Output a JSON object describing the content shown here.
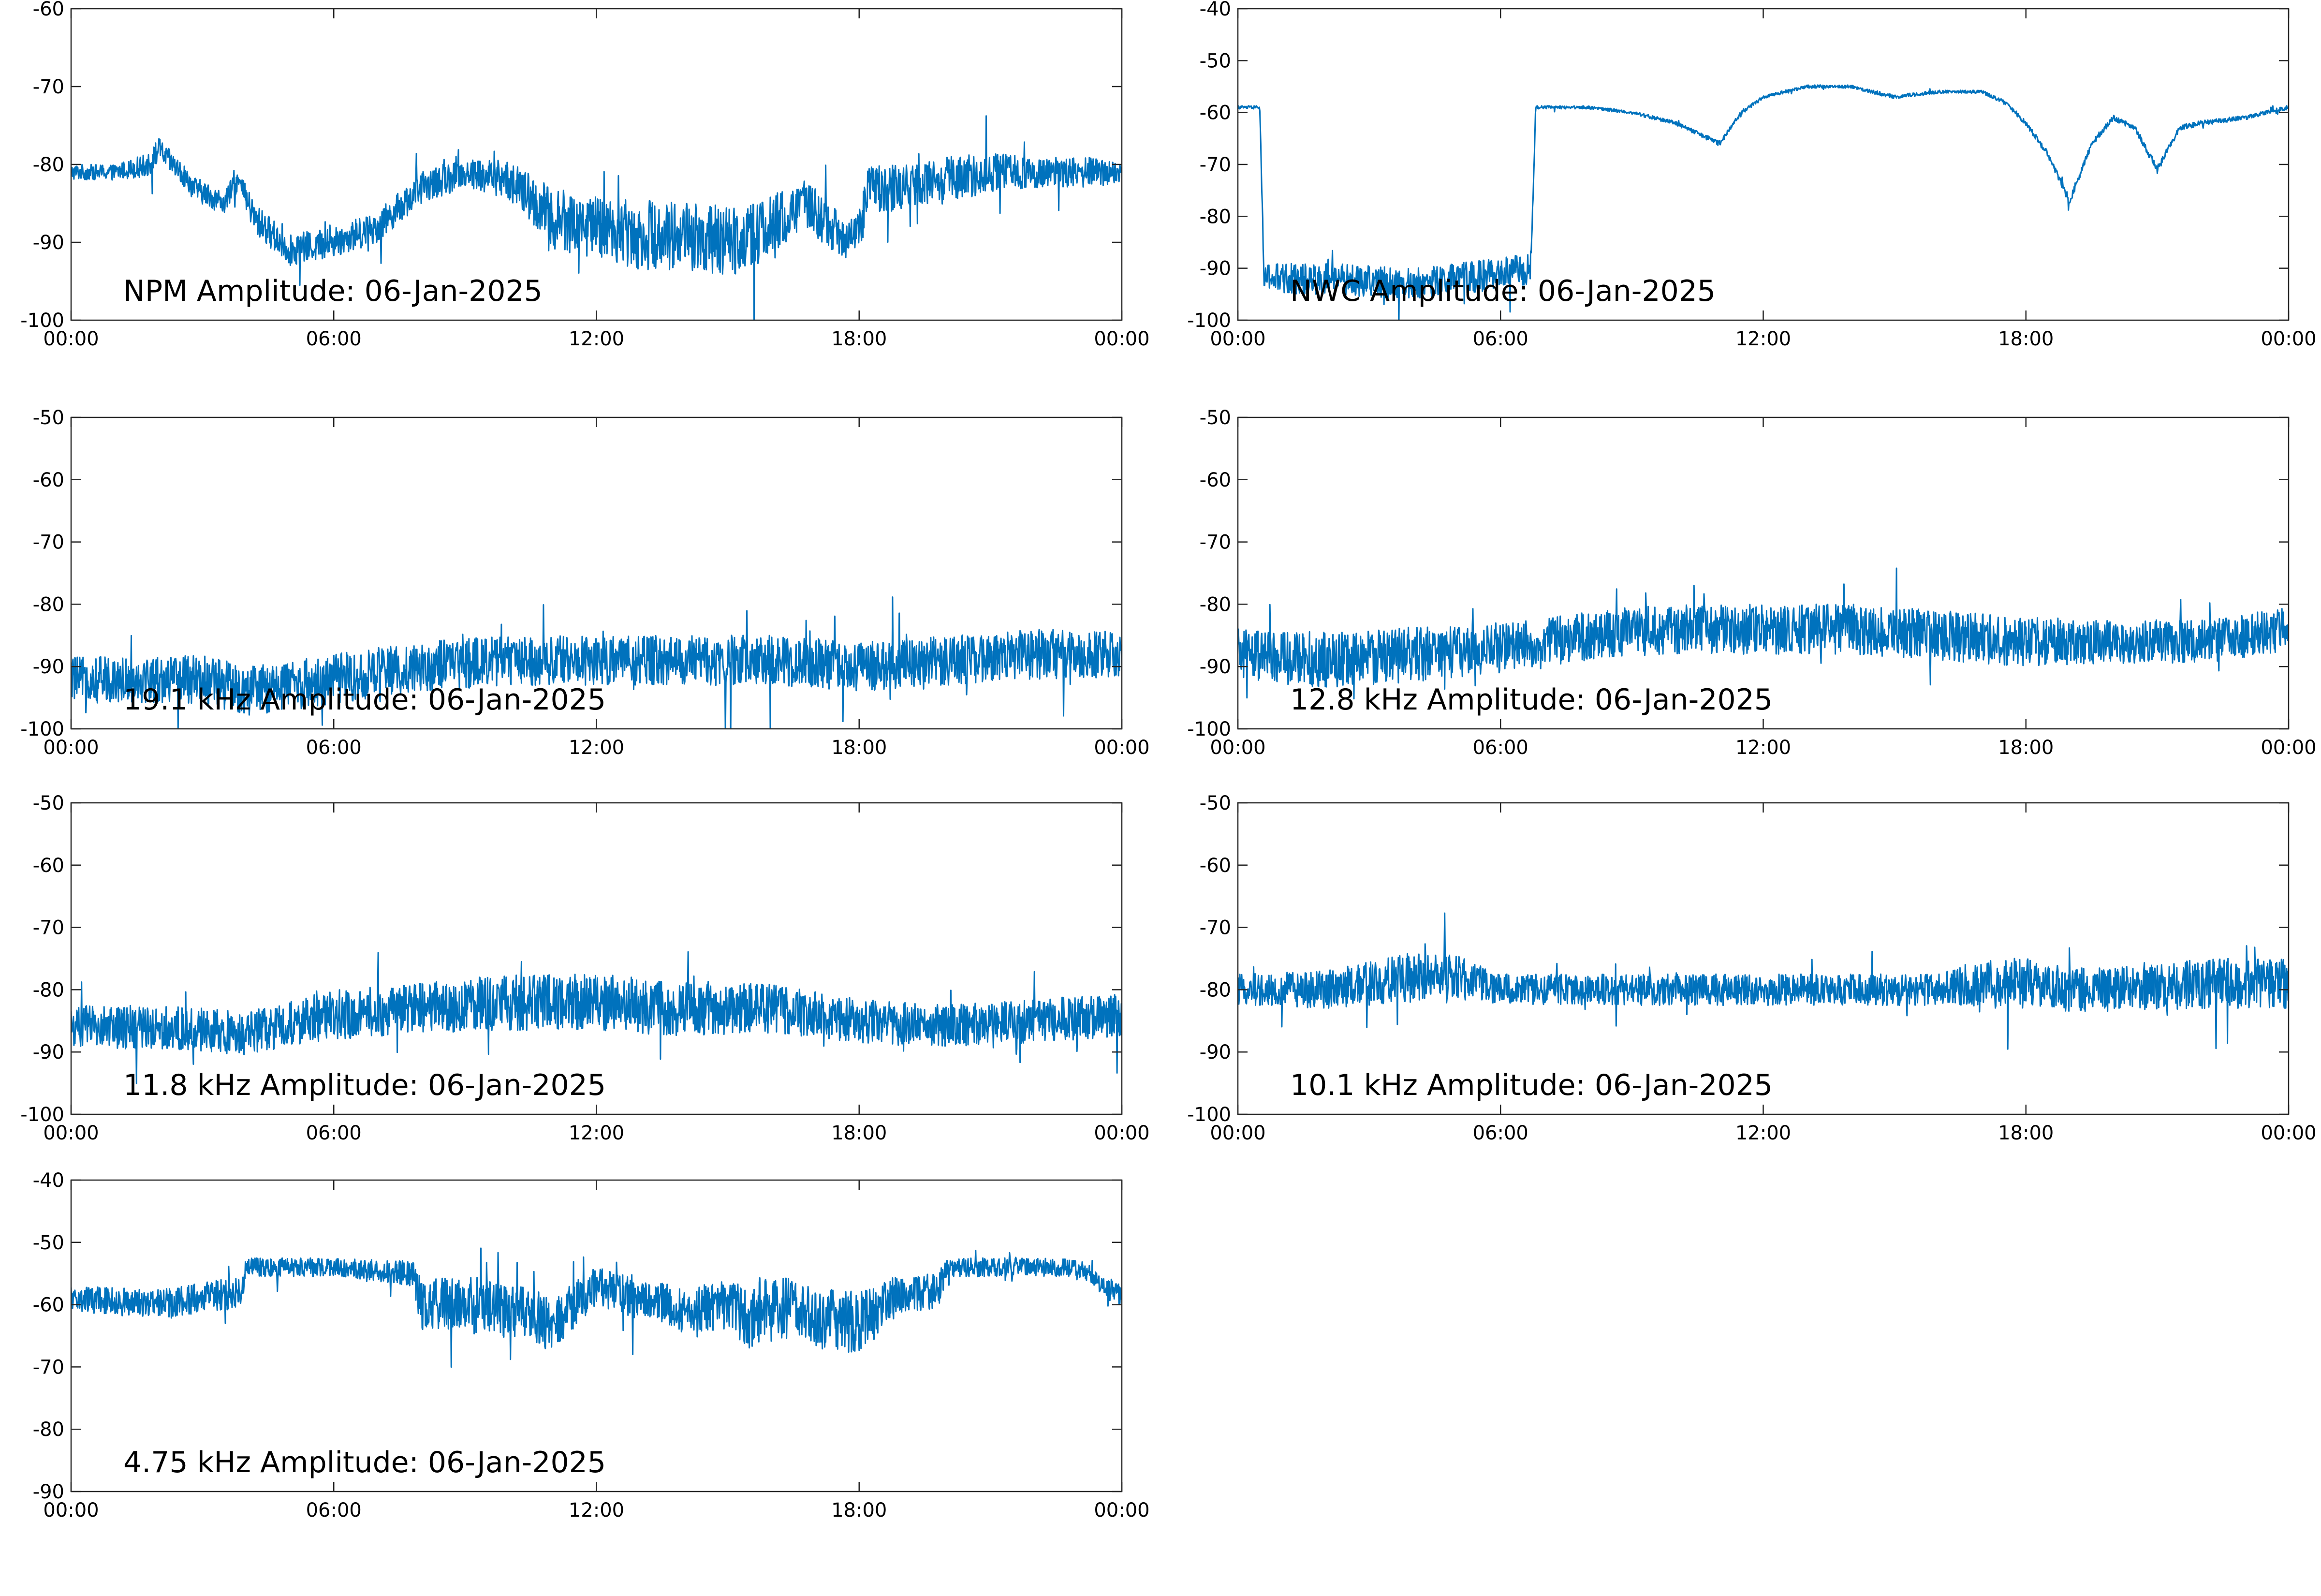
{
  "figure": {
    "line_color": "#0072BD",
    "axis_color": "#262626",
    "background": "#ffffff"
  },
  "chart_data": [
    {
      "type": "line",
      "title": "NPM Amplitude: 06-Jan-2025",
      "xlabel": "",
      "ylabel": "",
      "xlim": [
        "00:00",
        "24:00"
      ],
      "ylim": [
        -100,
        -60
      ],
      "yticks": [
        "-60",
        "-70",
        "-80",
        "-90",
        "-100"
      ],
      "xticks": [
        "00:00",
        "06:00",
        "12:00",
        "18:00",
        "00:00"
      ],
      "grid": false,
      "series": [
        {
          "x_hours": [
            0,
            1,
            1.8,
            2,
            2.8,
            3.5,
            3.8,
            4.2,
            5,
            6,
            7,
            8,
            9,
            10,
            11,
            12,
            13,
            14,
            15,
            16,
            16.8,
            17.5,
            18,
            18.2,
            19,
            20,
            21,
            22,
            23,
            24
          ],
          "values": [
            -81,
            -81,
            -80,
            -78,
            -83,
            -85,
            -82,
            -87,
            -91,
            -90,
            -88,
            -83,
            -81,
            -82,
            -87,
            -88,
            -89,
            -89,
            -90,
            -88,
            -85,
            -89,
            -89,
            -83,
            -83,
            -82,
            -81,
            -81,
            -81,
            -81
          ],
          "noise": [
            1,
            1,
            1.5,
            1.5,
            1.5,
            1.5,
            1.5,
            2,
            2,
            2,
            2,
            2,
            2,
            2.5,
            4,
            4,
            4.5,
            4.5,
            4.5,
            4,
            3,
            3,
            3,
            3,
            3,
            3,
            2.5,
            2,
            2,
            1.5
          ]
        }
      ]
    },
    {
      "type": "line",
      "title": "NWC Amplitude: 06-Jan-2025",
      "xlabel": "",
      "ylabel": "",
      "xlim": [
        "00:00",
        "24:00"
      ],
      "ylim": [
        -100,
        -40
      ],
      "yticks": [
        "-40",
        "-50",
        "-60",
        "-70",
        "-80",
        "-90",
        "-100"
      ],
      "xticks": [
        "00:00",
        "06:00",
        "12:00",
        "18:00",
        "00:00"
      ],
      "grid": false,
      "series": [
        {
          "x_hours": [
            0,
            0.5,
            0.6,
            2,
            4,
            6,
            6.7,
            6.8,
            7.5,
            8,
            9,
            10,
            10.5,
            11,
            11.5,
            12,
            13,
            14,
            15,
            16,
            17,
            17.5,
            18,
            18.5,
            19,
            19.5,
            20,
            20.5,
            21,
            21.5,
            22,
            23,
            24
          ],
          "values": [
            -59,
            -59,
            -92,
            -92,
            -93,
            -91,
            -90,
            -59,
            -59,
            -59,
            -60,
            -62,
            -64,
            -66,
            -60,
            -57,
            -55,
            -55,
            -57,
            -56,
            -56,
            -58,
            -62,
            -68,
            -77,
            -66,
            -61,
            -63,
            -71,
            -63,
            -62,
            -61,
            -59
          ],
          "noise": [
            0.3,
            0.3,
            3,
            3,
            3,
            3,
            3,
            0.3,
            0.3,
            0.3,
            0.3,
            0.4,
            0.4,
            0.5,
            0.4,
            0.3,
            0.3,
            0.3,
            0.4,
            0.3,
            0.3,
            0.4,
            0.5,
            0.6,
            0.8,
            0.6,
            0.5,
            0.6,
            0.8,
            0.5,
            0.5,
            0.4,
            0.4
          ]
        }
      ]
    },
    {
      "type": "line",
      "title": "19.1 kHz Amplitude: 06-Jan-2025",
      "xlabel": "",
      "ylabel": "",
      "xlim": [
        "00:00",
        "24:00"
      ],
      "ylim": [
        -100,
        -50
      ],
      "yticks": [
        "-50",
        "-60",
        "-70",
        "-80",
        "-90",
        "-100"
      ],
      "xticks": [
        "00:00",
        "06:00",
        "12:00",
        "18:00",
        "00:00"
      ],
      "grid": false,
      "series": [
        {
          "x_hours": [
            0,
            3,
            4,
            6,
            8,
            10,
            12,
            14,
            16,
            18,
            20,
            22,
            24
          ],
          "values": [
            -92,
            -92,
            -94,
            -92,
            -90,
            -89,
            -89,
            -89,
            -89,
            -90,
            -89,
            -88,
            -88
          ],
          "noise": [
            3.5,
            4,
            4,
            4,
            4,
            4,
            4,
            4,
            4,
            4,
            4,
            4,
            4
          ]
        }
      ]
    },
    {
      "type": "line",
      "title": "12.8 kHz Amplitude: 06-Jan-2025",
      "xlabel": "",
      "ylabel": "",
      "xlim": [
        "00:00",
        "24:00"
      ],
      "ylim": [
        -100,
        -50
      ],
      "yticks": [
        "-50",
        "-60",
        "-70",
        "-80",
        "-90",
        "-100"
      ],
      "xticks": [
        "00:00",
        "06:00",
        "12:00",
        "18:00",
        "00:00"
      ],
      "grid": false,
      "series": [
        {
          "x_hours": [
            0,
            2,
            4,
            6,
            8,
            10,
            12,
            14,
            16,
            18,
            20,
            22,
            24
          ],
          "values": [
            -88,
            -89,
            -88,
            -87,
            -85,
            -84,
            -84,
            -84,
            -85,
            -86,
            -86,
            -86,
            -84
          ],
          "noise": [
            4,
            4.5,
            4.5,
            4,
            4,
            4,
            4,
            4,
            4,
            4,
            3.5,
            3.5,
            3.5
          ]
        }
      ]
    },
    {
      "type": "line",
      "title": "11.8 kHz Amplitude: 06-Jan-2025",
      "xlabel": "",
      "ylabel": "",
      "xlim": [
        "00:00",
        "24:00"
      ],
      "ylim": [
        -100,
        -50
      ],
      "yticks": [
        "-50",
        "-60",
        "-70",
        "-80",
        "-90",
        "-100"
      ],
      "xticks": [
        "00:00",
        "06:00",
        "12:00",
        "18:00",
        "00:00"
      ],
      "grid": false,
      "series": [
        {
          "x_hours": [
            0,
            2,
            4,
            6,
            8,
            10,
            12,
            14,
            16,
            18,
            20,
            22,
            24
          ],
          "values": [
            -86,
            -86,
            -87,
            -84,
            -83,
            -82,
            -82,
            -83,
            -83,
            -85,
            -86,
            -85,
            -84
          ],
          "noise": [
            3.5,
            3.5,
            3.5,
            4,
            4,
            4.5,
            4.5,
            4.5,
            4,
            3.5,
            3.5,
            3.5,
            3.5
          ]
        }
      ]
    },
    {
      "type": "line",
      "title": "10.1 kHz Amplitude: 06-Jan-2025",
      "xlabel": "",
      "ylabel": "",
      "xlim": [
        "00:00",
        "24:00"
      ],
      "ylim": [
        -100,
        -50
      ],
      "yticks": [
        "-50",
        "-60",
        "-70",
        "-80",
        "-90",
        "-100"
      ],
      "xticks": [
        "00:00",
        "06:00",
        "12:00",
        "18:00",
        "00:00"
      ],
      "grid": false,
      "series": [
        {
          "x_hours": [
            0,
            2,
            3,
            4,
            5,
            6,
            8,
            10,
            12,
            14,
            16,
            17,
            18,
            19,
            20,
            22,
            24
          ],
          "values": [
            -80,
            -80,
            -79,
            -78,
            -78,
            -80,
            -80,
            -80,
            -80,
            -80,
            -80,
            -79,
            -79,
            -80,
            -80,
            -79,
            -79
          ],
          "noise": [
            2.5,
            3,
            3.5,
            4,
            3.5,
            2.5,
            2.5,
            2.5,
            2.5,
            2.5,
            2.5,
            4,
            4,
            3.5,
            3.5,
            4,
            4
          ]
        }
      ]
    },
    {
      "type": "line",
      "title": "4.75 kHz Amplitude: 06-Jan-2025",
      "xlabel": "",
      "ylabel": "",
      "xlim": [
        "00:00",
        "24:00"
      ],
      "ylim": [
        -90,
        -40
      ],
      "yticks": [
        "-40",
        "-50",
        "-60",
        "-70",
        "-80",
        "-90"
      ],
      "xticks": [
        "00:00",
        "06:00",
        "12:00",
        "18:00",
        "00:00"
      ],
      "grid": false,
      "series": [
        {
          "x_hours": [
            0,
            2,
            3.9,
            4,
            6,
            7.8,
            8,
            9,
            10,
            11,
            12,
            13,
            14,
            15,
            15.5,
            16,
            17,
            18,
            19,
            19.8,
            20,
            22,
            23,
            24
          ],
          "values": [
            -59,
            -60,
            -58,
            -54,
            -54,
            -55,
            -60,
            -60,
            -61,
            -63,
            -57,
            -59,
            -61,
            -60,
            -62,
            -60,
            -62,
            -63,
            -58,
            -58,
            -54,
            -54,
            -54,
            -59
          ],
          "noise": [
            2,
            2.5,
            2.5,
            1.5,
            1.5,
            2,
            4,
            4.5,
            4.5,
            4.5,
            3,
            3.5,
            3.5,
            4,
            5,
            5,
            5,
            5,
            3,
            3,
            1.5,
            1.5,
            1.5,
            2
          ]
        }
      ]
    }
  ]
}
